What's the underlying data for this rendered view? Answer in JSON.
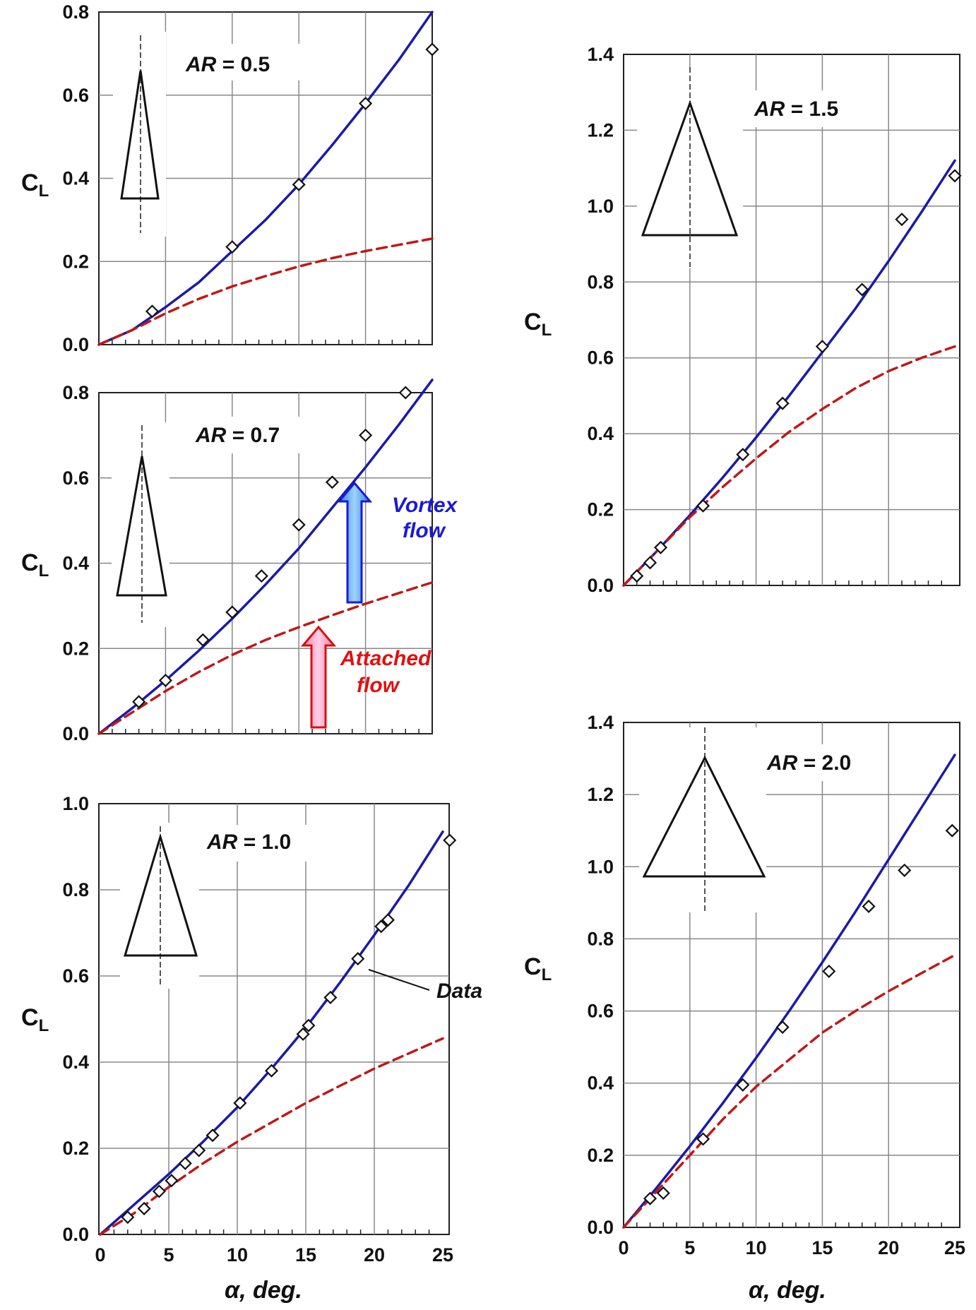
{
  "chart_data": [
    {
      "type": "line",
      "panel": "AR=0.5",
      "label_ar": "AR",
      "label_value": "= 0.5",
      "ylabel": "C",
      "ylabel_sub": "L",
      "xlabel": "",
      "xlim": [
        0,
        25
      ],
      "ylim": [
        0,
        0.8
      ],
      "xticks": [],
      "yticks": [
        "0.0",
        "0.2",
        "0.4",
        "0.6",
        "0.8"
      ],
      "ytick_values": [
        0,
        0.2,
        0.4,
        0.6,
        0.8
      ],
      "series": [
        {
          "style": "solid",
          "color": "#1a1aa8",
          "x": [
            0,
            2.5,
            5,
            7.5,
            10,
            12.5,
            15,
            17.5,
            20,
            22.5,
            25
          ],
          "y": [
            0,
            0.035,
            0.09,
            0.15,
            0.225,
            0.3,
            0.385,
            0.48,
            0.58,
            0.685,
            0.8
          ]
        },
        {
          "style": "dashed",
          "color": "#c01818",
          "x": [
            0,
            2.5,
            5,
            7.5,
            10,
            12.5,
            15,
            17.5,
            20,
            22.5,
            25
          ],
          "y": [
            0,
            0.035,
            0.075,
            0.11,
            0.14,
            0.165,
            0.188,
            0.208,
            0.225,
            0.24,
            0.255
          ]
        },
        {
          "style": "markers",
          "x": [
            4,
            10,
            15,
            20,
            25
          ],
          "y": [
            0.08,
            0.235,
            0.385,
            0.58,
            0.71
          ]
        }
      ]
    },
    {
      "type": "line",
      "panel": "AR=0.7",
      "label_ar": "AR",
      "label_value": "= 0.7",
      "ylabel": "C",
      "ylabel_sub": "L",
      "xlabel": "",
      "xlim": [
        0,
        25
      ],
      "ylim": [
        0,
        0.8
      ],
      "xticks": [],
      "yticks": [
        "0.0",
        "0.2",
        "0.4",
        "0.6",
        "0.8"
      ],
      "ytick_values": [
        0,
        0.2,
        0.4,
        0.6,
        0.8
      ],
      "annotations": {
        "vortex": [
          "Vortex",
          "flow"
        ],
        "attached": [
          "Attached",
          "flow"
        ]
      },
      "series": [
        {
          "style": "solid",
          "color": "#1a1aa8",
          "x": [
            0,
            2.5,
            5,
            7.5,
            10,
            12.5,
            15,
            17.5,
            20,
            22.5,
            25
          ],
          "y": [
            0,
            0.06,
            0.125,
            0.195,
            0.27,
            0.35,
            0.435,
            0.53,
            0.625,
            0.725,
            0.83
          ]
        },
        {
          "style": "dashed",
          "color": "#c01818",
          "x": [
            0,
            2.5,
            5,
            7.5,
            10,
            12.5,
            15,
            17.5,
            20,
            22.5,
            25
          ],
          "y": [
            0,
            0.05,
            0.1,
            0.145,
            0.185,
            0.22,
            0.25,
            0.278,
            0.305,
            0.33,
            0.355
          ]
        },
        {
          "style": "markers",
          "x": [
            3,
            5,
            7.8,
            10,
            12.2,
            15,
            17.5,
            20,
            23
          ],
          "y": [
            0.075,
            0.125,
            0.22,
            0.285,
            0.37,
            0.49,
            0.59,
            0.7,
            0.8
          ]
        }
      ]
    },
    {
      "type": "line",
      "panel": "AR=1.0",
      "label_ar": "AR",
      "label_value": "= 1.0",
      "ylabel": "C",
      "ylabel_sub": "L",
      "xlabel": "α, deg.",
      "xlim": [
        0,
        25
      ],
      "ylim": [
        0,
        1.0
      ],
      "xticks": [
        "0",
        "5",
        "10",
        "15",
        "20",
        "25"
      ],
      "xtick_values": [
        0,
        5,
        10,
        15,
        20,
        25
      ],
      "yticks": [
        "0.0",
        "0.2",
        "0.4",
        "0.6",
        "0.8",
        "1.0"
      ],
      "ytick_values": [
        0,
        0.2,
        0.4,
        0.6,
        0.8,
        1.0
      ],
      "annotations": {
        "data": "Data"
      },
      "series": [
        {
          "style": "solid",
          "color": "#1a1aa8",
          "x": [
            0,
            2.5,
            5,
            7.5,
            10,
            12.5,
            15,
            17.5,
            20,
            22.5,
            25
          ],
          "y": [
            0,
            0.07,
            0.14,
            0.215,
            0.295,
            0.385,
            0.48,
            0.585,
            0.695,
            0.81,
            0.935
          ]
        },
        {
          "style": "dashed",
          "color": "#c01818",
          "x": [
            0,
            2.5,
            5,
            7.5,
            10,
            12.5,
            15,
            17.5,
            20,
            22.5,
            25
          ],
          "y": [
            0,
            0.05,
            0.11,
            0.165,
            0.215,
            0.26,
            0.305,
            0.345,
            0.385,
            0.42,
            0.455
          ]
        },
        {
          "style": "markers",
          "x": [
            2,
            3.2,
            4.3,
            5.2,
            6.2,
            7.2,
            8.2,
            10.2,
            12.5,
            14.8,
            15.2,
            16.8,
            18.8,
            20.5,
            21,
            25.5
          ],
          "y": [
            0.04,
            0.06,
            0.1,
            0.125,
            0.165,
            0.195,
            0.23,
            0.305,
            0.38,
            0.465,
            0.485,
            0.55,
            0.64,
            0.715,
            0.73,
            0.915
          ]
        }
      ]
    },
    {
      "type": "line",
      "panel": "AR=1.5",
      "label_ar": "AR",
      "label_value": "= 1.5",
      "ylabel": "C",
      "ylabel_sub": "L",
      "xlabel": "",
      "xlim": [
        0,
        25
      ],
      "ylim": [
        0,
        1.4
      ],
      "xticks": [],
      "yticks": [
        "0.0",
        "0.2",
        "0.4",
        "0.6",
        "0.8",
        "1.0",
        "1.2",
        "1.4"
      ],
      "ytick_values": [
        0,
        0.2,
        0.4,
        0.6,
        0.8,
        1.0,
        1.2,
        1.4
      ],
      "series": [
        {
          "style": "solid",
          "color": "#1a1aa8",
          "x": [
            0,
            2.5,
            5,
            7.5,
            10,
            12.5,
            15,
            17.5,
            20,
            22.5,
            25
          ],
          "y": [
            0,
            0.09,
            0.185,
            0.285,
            0.39,
            0.5,
            0.615,
            0.73,
            0.855,
            0.985,
            1.12
          ]
        },
        {
          "style": "dashed",
          "color": "#c01818",
          "x": [
            0,
            2.5,
            5,
            7.5,
            10,
            12.5,
            15,
            17.5,
            20,
            22.5,
            25
          ],
          "y": [
            0,
            0.09,
            0.18,
            0.26,
            0.335,
            0.405,
            0.465,
            0.52,
            0.565,
            0.6,
            0.63
          ]
        },
        {
          "style": "markers",
          "x": [
            1,
            2,
            2.8,
            6,
            9,
            12,
            15,
            18,
            21,
            25
          ],
          "y": [
            0.025,
            0.06,
            0.1,
            0.21,
            0.345,
            0.48,
            0.63,
            0.78,
            0.965,
            1.08
          ]
        }
      ]
    },
    {
      "type": "line",
      "panel": "AR=2.0",
      "label_ar": "AR",
      "label_value": "= 2.0",
      "ylabel": "C",
      "ylabel_sub": "L",
      "xlabel": "α, deg.",
      "xlim": [
        0,
        25
      ],
      "ylim": [
        0,
        1.4
      ],
      "xticks": [
        "0",
        "5",
        "10",
        "15",
        "20",
        "25"
      ],
      "xtick_values": [
        0,
        5,
        10,
        15,
        20,
        25
      ],
      "yticks": [
        "0.0",
        "0.2",
        "0.4",
        "0.6",
        "0.8",
        "1.0",
        "1.2",
        "1.4"
      ],
      "ytick_values": [
        0,
        0.2,
        0.4,
        0.6,
        0.8,
        1.0,
        1.2,
        1.4
      ],
      "series": [
        {
          "style": "solid",
          "color": "#1a1aa8",
          "x": [
            0,
            2.5,
            5,
            7.5,
            10,
            12.5,
            15,
            17.5,
            20,
            22.5,
            25
          ],
          "y": [
            0,
            0.11,
            0.225,
            0.345,
            0.47,
            0.6,
            0.735,
            0.875,
            1.02,
            1.165,
            1.31
          ]
        },
        {
          "style": "dashed",
          "color": "#c01818",
          "x": [
            0,
            2.5,
            5,
            7.5,
            10,
            12.5,
            15,
            17.5,
            20,
            22.5,
            25
          ],
          "y": [
            0,
            0.1,
            0.2,
            0.3,
            0.39,
            0.465,
            0.54,
            0.6,
            0.655,
            0.705,
            0.755
          ]
        },
        {
          "style": "markers",
          "x": [
            2,
            3,
            6,
            9,
            12,
            15.5,
            18.5,
            21.2,
            24.8
          ],
          "y": [
            0.08,
            0.095,
            0.245,
            0.395,
            0.555,
            0.71,
            0.89,
            0.99,
            1.1
          ]
        }
      ]
    }
  ]
}
